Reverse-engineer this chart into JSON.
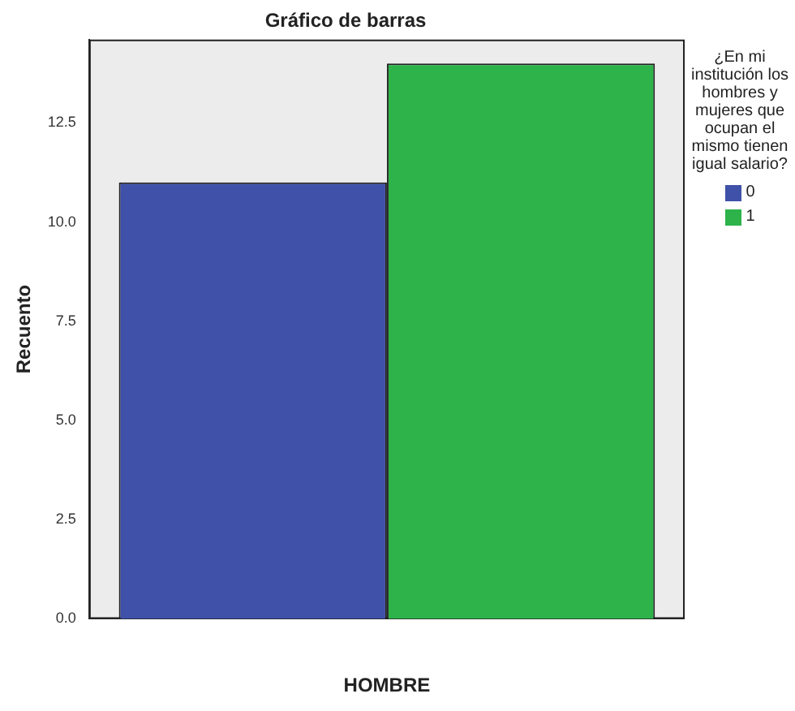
{
  "chart_data": {
    "type": "bar",
    "title": "Gráfico de barras",
    "xlabel": "HOMBRE",
    "ylabel": "Recuento",
    "legend_title": "¿En mi institución los hombres y mujeres que ocupan el mismo tienen igual salario?",
    "categories": [
      null
    ],
    "series": [
      {
        "name": "0",
        "color": "#3f51a8",
        "values": [
          11
        ]
      },
      {
        "name": "1",
        "color": "#2db34a",
        "values": [
          14
        ]
      }
    ],
    "ylim": [
      0,
      14.6
    ],
    "yticks": [
      {
        "value": 0,
        "label": "0.0"
      },
      {
        "value": 2.5,
        "label": "2.5"
      },
      {
        "value": 5,
        "label": "5.0"
      },
      {
        "value": 7.5,
        "label": "7.5"
      },
      {
        "value": 10,
        "label": "10.0"
      },
      {
        "value": 12.5,
        "label": "12.5"
      }
    ],
    "grid": false,
    "legend": "right"
  }
}
